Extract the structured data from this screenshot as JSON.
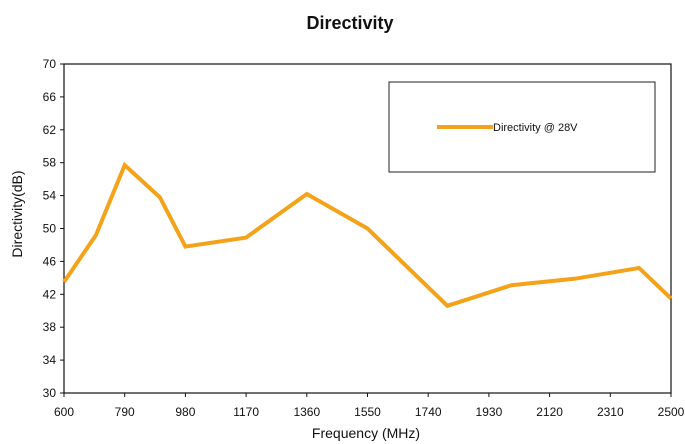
{
  "chart_data": {
    "type": "line",
    "title": "Directivity",
    "xlabel": "Frequency (MHz)",
    "ylabel": "Directivity(dB)",
    "xlim": [
      600,
      2500
    ],
    "ylim": [
      30,
      70
    ],
    "x_ticks": [
      600,
      790,
      980,
      1170,
      1360,
      1550,
      1740,
      1930,
      2120,
      2310,
      2500
    ],
    "y_ticks": [
      30,
      34,
      38,
      42,
      46,
      50,
      54,
      58,
      62,
      66,
      70
    ],
    "grid": true,
    "legend_position": "top-right",
    "series": [
      {
        "name": "Directivity @ 28V",
        "color": "#F5A21B",
        "points": [
          {
            "x": 600,
            "y": 43.5
          },
          {
            "x": 700,
            "y": 49.2
          },
          {
            "x": 790,
            "y": 57.7
          },
          {
            "x": 900,
            "y": 53.8
          },
          {
            "x": 980,
            "y": 47.8
          },
          {
            "x": 1170,
            "y": 48.9
          },
          {
            "x": 1360,
            "y": 54.2
          },
          {
            "x": 1550,
            "y": 50.0
          },
          {
            "x": 1800,
            "y": 40.6
          },
          {
            "x": 2000,
            "y": 43.1
          },
          {
            "x": 2200,
            "y": 43.9
          },
          {
            "x": 2400,
            "y": 45.2
          },
          {
            "x": 2500,
            "y": 41.5
          }
        ]
      }
    ]
  }
}
